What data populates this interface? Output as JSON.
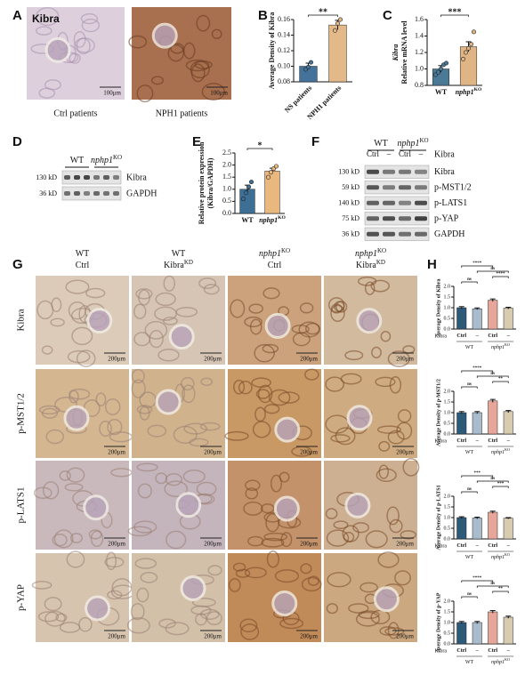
{
  "panels": {
    "A": {
      "letter": "A",
      "stain": "Kibra",
      "scale_bars": [
        "100μm",
        "100μm"
      ],
      "captions": [
        "Ctrl patients",
        "NPH1 patients"
      ]
    },
    "B": {
      "letter": "B"
    },
    "C": {
      "letter": "C"
    },
    "D": {
      "letter": "D",
      "groups": [
        {
          "name": "WT"
        },
        {
          "name": "nphp1",
          "sup": "KO"
        }
      ],
      "rows": [
        {
          "size": "130 kD",
          "protein": "Kibra"
        },
        {
          "size": "36 kD",
          "protein": "GAPDH"
        }
      ]
    },
    "E": {
      "letter": "E"
    },
    "F": {
      "letter": "F",
      "groups": [
        {
          "name": "WT"
        },
        {
          "name": "nphp1",
          "sup": "KO"
        }
      ],
      "lanes": [
        "Ctrl",
        "–",
        "Ctrl",
        "–"
      ],
      "lane_row_label": "Kibra",
      "rows": [
        {
          "size": "130 kD",
          "protein": "Kibra"
        },
        {
          "size": "59 kD",
          "protein": "p-MST1/2"
        },
        {
          "size": "140 kD",
          "protein": "p-LATS1"
        },
        {
          "size": "75 kD",
          "protein": "p-YAP"
        },
        {
          "size": "36 kD",
          "protein": "GAPDH"
        }
      ]
    },
    "G": {
      "letter": "G",
      "columns": [
        {
          "genotype": {
            "name": "WT"
          },
          "treatment": {
            "name": "Ctrl"
          }
        },
        {
          "genotype": {
            "name": "WT"
          },
          "treatment": {
            "name": "Kibra",
            "sup": "KD"
          }
        },
        {
          "genotype": {
            "name": "nphp1",
            "sup": "KO"
          },
          "treatment": {
            "name": "Ctrl"
          }
        },
        {
          "genotype": {
            "name": "nphp1",
            "sup": "KO"
          },
          "treatment": {
            "name": "Kibra",
            "sup": "KD"
          }
        }
      ],
      "rows": [
        "Kibra",
        "p-MST1/2",
        "p-LATS1",
        "p-YAP"
      ],
      "scale_bar": "200μm"
    },
    "H": {
      "letter": "H"
    }
  },
  "chart_data": [
    {
      "type": "bar",
      "ylabel": [
        "Average Density of Kibra"
      ],
      "categories": [
        "NS patients",
        "NPH1 patients"
      ],
      "values": [
        0.1,
        0.153
      ],
      "errors": [
        0.004,
        0.006
      ],
      "points": [
        [
          0.096,
          0.099,
          0.105
        ],
        [
          0.146,
          0.155,
          0.16
        ]
      ],
      "colors": [
        "#44729a",
        "#e3b98a"
      ],
      "ylim": [
        0.08,
        0.16
      ],
      "yticks": [
        0.08,
        {
          "value": 0.1,
          "label": "0.10"
        },
        0.12,
        0.14,
        0.16
      ],
      "comparisons": [
        {
          "label": "**",
          "between": [
            0,
            1
          ]
        }
      ]
    },
    {
      "type": "bar",
      "ylabel": [
        "Kibra",
        "Relative mRNA level"
      ],
      "categories": [
        "WT",
        "nphp1"
      ],
      "category_sups": [
        null,
        "KO"
      ],
      "values": [
        1.0,
        1.27
      ],
      "errors": [
        0.04,
        0.06
      ],
      "points": [
        [
          0.93,
          0.96,
          1.0,
          1.05,
          1.07
        ],
        [
          1.12,
          1.2,
          1.25,
          1.3,
          1.45
        ]
      ],
      "colors": [
        "#4a7a96",
        "#e0b585"
      ],
      "ylim": [
        0.8,
        1.6
      ],
      "yticks": [
        0.8,
        {
          "value": 1,
          "label": "1.0"
        },
        1.2,
        1.4,
        1.6
      ],
      "comparisons": [
        {
          "label": "***",
          "between": [
            0,
            1
          ]
        }
      ]
    },
    {
      "type": "bar",
      "ylabel": [
        "Relative protein expression",
        "(Kibra/GAPDH)"
      ],
      "categories": [
        "WT",
        "nphp1"
      ],
      "category_sups": [
        null,
        "KO"
      ],
      "values": [
        1.0,
        1.75
      ],
      "errors": [
        0.17,
        0.12
      ],
      "points": [
        [
          0.6,
          0.85,
          1.1,
          1.3
        ],
        [
          1.5,
          1.7,
          1.85,
          1.95
        ]
      ],
      "colors": [
        "#3d6e94",
        "#e8b87f"
      ],
      "ylim": [
        0,
        2.5
      ],
      "yticks": [
        {
          "value": 0,
          "label": "0.0"
        },
        0.5,
        {
          "value": 1,
          "label": "1.0"
        },
        1.5,
        {
          "value": 2,
          "label": "2.0"
        },
        2.5
      ],
      "comparisons": [
        {
          "label": "*",
          "between": [
            0,
            1
          ]
        }
      ]
    },
    {
      "type": "bar",
      "ylabel": [
        "Average Density of Kibra"
      ],
      "categories": [
        "Ctrl",
        "–",
        "Ctrl",
        "–"
      ],
      "row_label": "Kibra",
      "groups": [
        {
          "name": "WT"
        },
        {
          "name": "nphp1",
          "sup": "KO"
        }
      ],
      "values": [
        1.0,
        0.95,
        1.35,
        0.98
      ],
      "errors": [
        0.05,
        0.04,
        0.06,
        0.04
      ],
      "colors": [
        "#2e5a7a",
        "#a8bccd",
        "#e8a69a",
        "#d8ccb0"
      ],
      "ylim": [
        0,
        2
      ],
      "yticks": [
        {
          "value": 0,
          "label": "0.0"
        },
        0.5,
        {
          "value": 1,
          "label": "1.0"
        },
        1.5,
        {
          "value": 2,
          "label": "2.0"
        }
      ],
      "comparisons": [
        {
          "label": "ns",
          "between": [
            0,
            1
          ]
        },
        {
          "label": "****",
          "between": [
            2,
            3
          ]
        },
        {
          "label": "ns",
          "between": [
            1,
            3
          ]
        },
        {
          "label": "****",
          "between": [
            0,
            2
          ]
        }
      ]
    },
    {
      "type": "bar",
      "ylabel": [
        "Average Density of p-MST1/2"
      ],
      "categories": [
        "Ctrl",
        "–",
        "Ctrl",
        "–"
      ],
      "row_label": "Kibra",
      "groups": [
        {
          "name": "WT"
        },
        {
          "name": "nphp1",
          "sup": "KO"
        }
      ],
      "values": [
        1.0,
        1.0,
        1.55,
        1.05
      ],
      "errors": [
        0.05,
        0.05,
        0.07,
        0.05
      ],
      "colors": [
        "#2e5a7a",
        "#a8bccd",
        "#e8a69a",
        "#d8ccb0"
      ],
      "ylim": [
        0,
        2
      ],
      "yticks": [
        {
          "value": 0,
          "label": "0.0"
        },
        0.5,
        {
          "value": 1,
          "label": "1.0"
        },
        1.5,
        {
          "value": 2,
          "label": "2.0"
        }
      ],
      "comparisons": [
        {
          "label": "ns",
          "between": [
            0,
            1
          ]
        },
        {
          "label": "**",
          "between": [
            2,
            3
          ]
        },
        {
          "label": "ns",
          "between": [
            1,
            3
          ]
        },
        {
          "label": "****",
          "between": [
            0,
            2
          ]
        }
      ]
    },
    {
      "type": "bar",
      "ylabel": [
        "Average Density of p-LATS1"
      ],
      "categories": [
        "Ctrl",
        "–",
        "Ctrl",
        "–"
      ],
      "row_label": "Kibra",
      "groups": [
        {
          "name": "WT"
        },
        {
          "name": "nphp1",
          "sup": "KO"
        }
      ],
      "values": [
        1.0,
        0.98,
        1.25,
        0.97
      ],
      "errors": [
        0.04,
        0.04,
        0.05,
        0.03
      ],
      "colors": [
        "#2e5a7a",
        "#a8bccd",
        "#e8a69a",
        "#d8ccb0"
      ],
      "ylim": [
        0,
        2
      ],
      "yticks": [
        {
          "value": 0,
          "label": "0.0"
        },
        0.5,
        {
          "value": 1,
          "label": "1.0"
        },
        1.5,
        {
          "value": 2,
          "label": "2.0"
        }
      ],
      "comparisons": [
        {
          "label": "ns",
          "between": [
            0,
            1
          ]
        },
        {
          "label": "***",
          "between": [
            2,
            3
          ]
        },
        {
          "label": "ns",
          "between": [
            1,
            3
          ]
        },
        {
          "label": "***",
          "between": [
            0,
            2
          ]
        }
      ]
    },
    {
      "type": "bar",
      "ylabel": [
        "Average Density of p-YAP"
      ],
      "categories": [
        "Ctrl",
        "–",
        "Ctrl",
        "–"
      ],
      "row_label": "Kibra",
      "groups": [
        {
          "name": "WT"
        },
        {
          "name": "nphp1",
          "sup": "KO"
        }
      ],
      "values": [
        1.0,
        1.0,
        1.5,
        1.25
      ],
      "errors": [
        0.05,
        0.05,
        0.06,
        0.05
      ],
      "colors": [
        "#2e5a7a",
        "#a8bccd",
        "#e8a69a",
        "#d8ccb0"
      ],
      "ylim": [
        0,
        2
      ],
      "yticks": [
        {
          "value": 0,
          "label": "0.0"
        },
        0.5,
        {
          "value": 1,
          "label": "1.0"
        },
        1.5,
        {
          "value": 2,
          "label": "2.0"
        }
      ],
      "comparisons": [
        {
          "label": "ns",
          "between": [
            0,
            1
          ]
        },
        {
          "label": "**",
          "between": [
            2,
            3
          ]
        },
        {
          "label": "ns",
          "between": [
            1,
            3
          ]
        },
        {
          "label": "****",
          "between": [
            0,
            2
          ]
        }
      ]
    }
  ]
}
